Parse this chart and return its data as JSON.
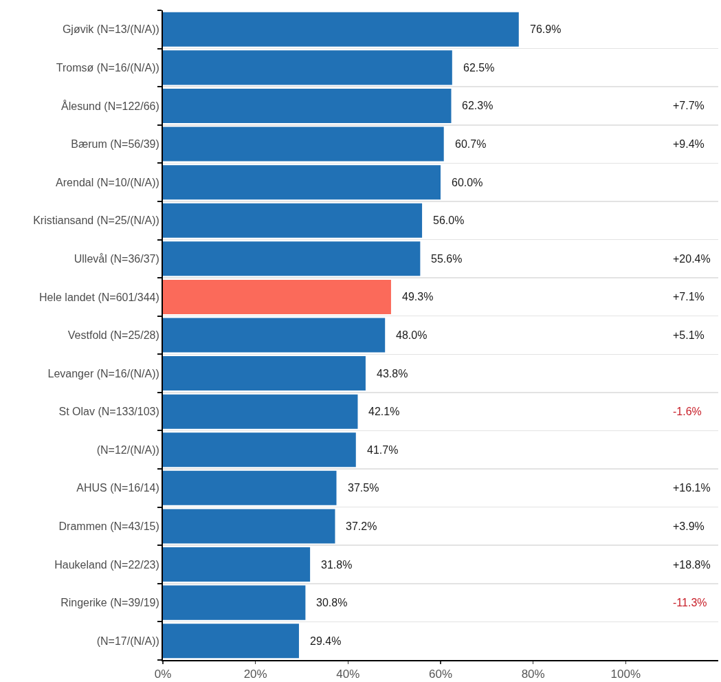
{
  "chart_data": [
    {
      "type": "bar",
      "orientation": "horizontal",
      "categories": [
        "Gjøvik (N=13/(N/A))",
        "Tromsø (N=16/(N/A))",
        "Ålesund (N=122/66)",
        "Bærum (N=56/39)",
        "Arendal (N=10/(N/A))",
        "Kristiansand (N=25/(N/A))",
        "Ullevål (N=36/37)",
        "Hele landet (N=601/344)",
        "Vestfold (N=25/28)",
        "Levanger (N=16/(N/A))",
        "St Olav (N=133/103)",
        "(N=12/(N/A))",
        "AHUS (N=16/14)",
        "Drammen (N=43/15)",
        "Haukeland (N=22/23)",
        "Ringerike (N=39/19)",
        "(N=17/(N/A))"
      ],
      "values": [
        76.9,
        62.5,
        62.3,
        60.7,
        60.0,
        56.0,
        55.6,
        49.3,
        48.0,
        43.8,
        42.1,
        41.7,
        37.5,
        37.2,
        31.8,
        30.8,
        29.4
      ],
      "value_labels": [
        "76.9%",
        "62.5%",
        "62.3%",
        "60.7%",
        "60.0%",
        "56.0%",
        "55.6%",
        "49.3%",
        "48.0%",
        "43.8%",
        "42.1%",
        "41.7%",
        "37.5%",
        "37.2%",
        "31.8%",
        "30.8%",
        "29.4%"
      ],
      "colors": [
        "#2171b5",
        "#2171b5",
        "#2171b5",
        "#2171b5",
        "#2171b5",
        "#2171b5",
        "#2171b5",
        "#fb6a5a",
        "#2171b5",
        "#2171b5",
        "#2171b5",
        "#2171b5",
        "#2171b5",
        "#2171b5",
        "#2171b5",
        "#2171b5",
        "#2171b5"
      ],
      "xlim": [
        0,
        120
      ],
      "xticks": [
        {
          "value": 0,
          "label": "0%"
        },
        {
          "value": 20,
          "label": "20%"
        },
        {
          "value": 40,
          "label": "40%"
        },
        {
          "value": 60,
          "label": "60%"
        },
        {
          "value": 80,
          "label": "80%"
        },
        {
          "value": 100,
          "label": "100%"
        }
      ],
      "grid": "y"
    },
    {
      "type": "other",
      "categories": [
        null,
        null,
        null,
        null,
        null,
        null,
        null,
        null,
        null,
        null,
        null,
        null,
        null,
        null,
        null,
        null,
        null
      ],
      "values": [
        null,
        null,
        7.7,
        9.4,
        null,
        null,
        20.4,
        7.1,
        5.1,
        null,
        -1.6,
        null,
        16.1,
        3.9,
        18.8,
        -11.3,
        null
      ],
      "value_labels": [
        null,
        null,
        "+7.7%",
        "+9.4%",
        null,
        null,
        "+20.4%",
        "+7.1%",
        "+5.1%",
        null,
        "-1.6%",
        null,
        "+16.1%",
        "+3.9%",
        "+18.8%",
        "-11.3%",
        null
      ],
      "colors": [
        null,
        null,
        "#1a1a1a",
        "#1a1a1a",
        null,
        null,
        "#1a1a1a",
        "#1a1a1a",
        "#1a1a1a",
        null,
        "#c8202a",
        null,
        "#1a1a1a",
        "#1a1a1a",
        "#1a1a1a",
        "#c8202a",
        null
      ]
    }
  ]
}
